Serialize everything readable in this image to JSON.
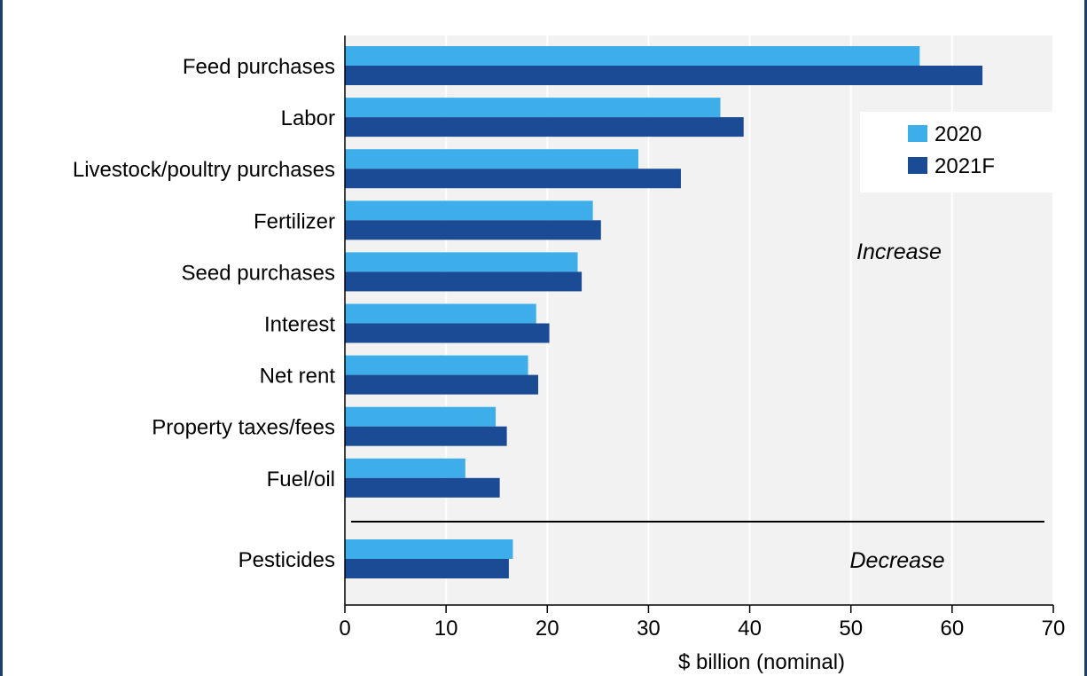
{
  "chart_data": {
    "type": "bar",
    "orientation": "horizontal",
    "title": "",
    "xlabel": "$ billion (nominal)",
    "ylabel": "",
    "xlim": [
      0,
      70
    ],
    "xticks": [
      0,
      10,
      20,
      30,
      40,
      50,
      60,
      70
    ],
    "grid": "vertical",
    "legend_position": "top-right",
    "categories": [
      "Feed purchases",
      "Labor",
      "Livestock/poultry purchases",
      "Fertilizer",
      "Seed purchases",
      "Interest",
      "Net rent",
      "Property taxes/fees",
      "Fuel/oil",
      "Pesticides"
    ],
    "series": [
      {
        "name": "2020",
        "color": "#3daee9",
        "values": [
          56.8,
          37.1,
          29.0,
          24.5,
          23.0,
          18.9,
          18.1,
          14.9,
          11.9,
          16.6
        ]
      },
      {
        "name": "2021F",
        "color": "#1b4b94",
        "values": [
          63.0,
          39.4,
          33.2,
          25.3,
          23.4,
          20.2,
          19.1,
          16.0,
          15.3,
          16.2
        ]
      }
    ],
    "groups": [
      {
        "label": "Increase",
        "categories": [
          "Feed purchases",
          "Labor",
          "Livestock/poultry purchases",
          "Fertilizer",
          "Seed purchases",
          "Interest",
          "Net rent",
          "Property taxes/fees",
          "Fuel/oil"
        ]
      },
      {
        "label": "Decrease",
        "categories": [
          "Pesticides"
        ]
      }
    ],
    "plot_background": "#f2f2f2"
  }
}
